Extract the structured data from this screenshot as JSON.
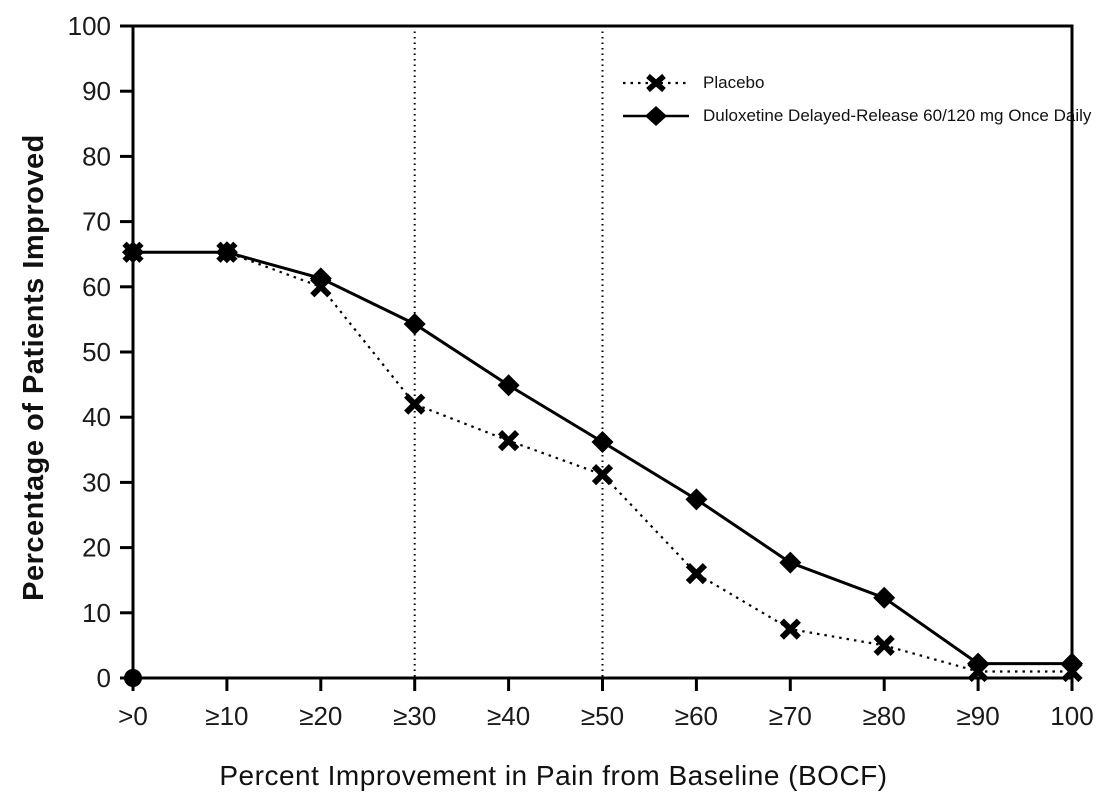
{
  "chart_data": {
    "type": "line",
    "title": "",
    "xlabel": "Percent Improvement in Pain from Baseline (BOCF)",
    "ylabel": "Percentage of Patients Improved",
    "categories": [
      ">0",
      "≥10",
      "≥20",
      "≥30",
      "≥40",
      "≥50",
      "≥60",
      "≥70",
      "≥80",
      "≥90",
      "100"
    ],
    "series": [
      {
        "name": "Placebo",
        "marker": "x",
        "line": "dotted",
        "values": [
          65.3,
          65.3,
          60.0,
          42.0,
          36.4,
          31.2,
          16.0,
          7.5,
          5.0,
          1.0,
          1.0
        ]
      },
      {
        "name": "Duloxetine Delayed-Release 60/120 mg Once Daily",
        "marker": "diamond",
        "line": "solid",
        "values": [
          65.3,
          65.3,
          61.3,
          54.3,
          44.9,
          36.2,
          27.4,
          17.7,
          12.3,
          2.2,
          2.2
        ]
      }
    ],
    "ylim": [
      0,
      100
    ],
    "yticks": [
      0,
      10,
      20,
      30,
      40,
      50,
      60,
      70,
      80,
      90,
      100
    ],
    "reference_lines_x": [
      "≥30",
      "≥50"
    ],
    "origin_marker": true,
    "legend_position": "top-right-inside",
    "grid": false,
    "line_color": "#000000",
    "background": "#ffffff"
  }
}
